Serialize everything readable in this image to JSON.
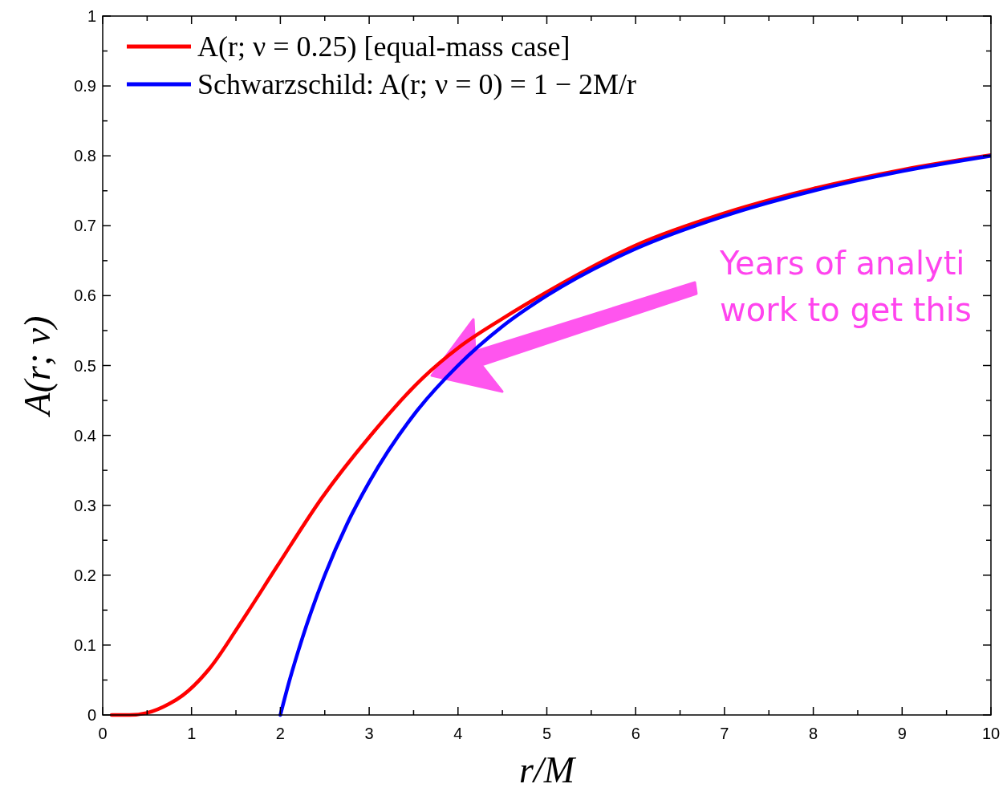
{
  "chart_data": {
    "type": "line",
    "xlabel": "r/M",
    "ylabel": "A(r; ν)",
    "xlim": [
      0,
      10
    ],
    "ylim": [
      0,
      1
    ],
    "xticks": [
      0,
      {
        "value": 0.5,
        "label": null
      },
      1,
      {
        "value": 1.5,
        "label": null
      },
      2,
      {
        "value": 2.5,
        "label": null
      },
      3,
      {
        "value": 3.5,
        "label": null
      },
      4,
      {
        "value": 4.5,
        "label": null
      },
      5,
      {
        "value": 5.5,
        "label": null
      },
      6,
      {
        "value": 6.5,
        "label": null
      },
      7,
      {
        "value": 7.5,
        "label": null
      },
      8,
      {
        "value": 8.5,
        "label": null
      },
      9,
      {
        "value": 9.5,
        "label": null
      },
      10
    ],
    "yticks": [
      0,
      {
        "value": 0.05,
        "label": null
      },
      0.1,
      {
        "value": 0.15,
        "label": null
      },
      0.2,
      {
        "value": 0.25,
        "label": null
      },
      0.3,
      {
        "value": 0.35,
        "label": null
      },
      0.4,
      {
        "value": 0.45,
        "label": null
      },
      0.5,
      {
        "value": 0.55,
        "label": null
      },
      0.6,
      {
        "value": 0.65,
        "label": null
      },
      0.7,
      {
        "value": 0.75,
        "label": null
      },
      0.8,
      {
        "value": 0.85,
        "label": null
      },
      0.9,
      {
        "value": 0.95,
        "label": null
      },
      1
    ],
    "grid": false,
    "legend": "top left",
    "line_style": "solid",
    "marker": "none",
    "annotations": [
      "Years of analyti\nwork to get this"
    ],
    "series": [
      {
        "name": "A(r; ν = 0.25) [equal-mass case]",
        "color": "#ff0000",
        "x": [
          0.1,
          0.3,
          0.5,
          0.75,
          0.9,
          1.2,
          1.57,
          1.96,
          2.47,
          3.01,
          3.61,
          4,
          4.5,
          5,
          6,
          7,
          8,
          9,
          10
        ],
        "values": [
          0,
          0,
          0.003,
          0.016,
          0.028,
          0.066,
          0.135,
          0.212,
          0.311,
          0.399,
          0.483,
          0.525,
          0.567,
          0.605,
          0.672,
          0.718,
          0.753,
          0.78,
          0.801
        ]
      },
      {
        "name": "Schwarzschild: A(r; ν = 0) = 1 − 2M/r",
        "color": "#0000ff",
        "x": [
          2,
          2.1,
          2.25,
          2.5,
          2.75,
          3,
          3.5,
          4,
          4.5,
          5,
          6,
          7,
          8,
          9,
          10
        ],
        "values": [
          0,
          0.048,
          0.111,
          0.2,
          0.273,
          0.333,
          0.429,
          0.5,
          0.556,
          0.6,
          0.667,
          0.714,
          0.75,
          0.778,
          0.8
        ]
      }
    ]
  }
}
